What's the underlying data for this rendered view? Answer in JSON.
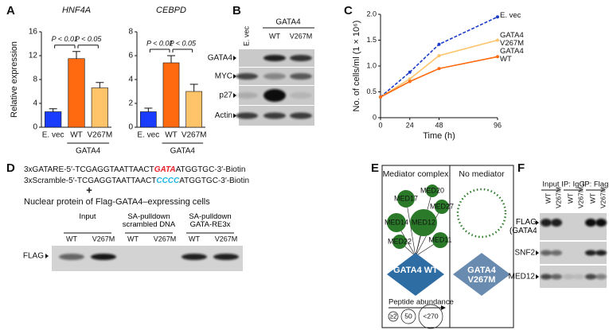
{
  "chart_data": [
    {
      "type": "bar",
      "panel": "A",
      "title": "HNF4A",
      "ylabel": "Relative expression",
      "categories": [
        "E. vec",
        "WT",
        "V267M"
      ],
      "values": [
        2.6,
        11.5,
        6.6
      ],
      "errors": [
        0.5,
        1.2,
        0.9
      ],
      "colors": [
        "#1a3cff",
        "#ff6a10",
        "#ffc46a"
      ],
      "ylim": [
        0,
        16
      ],
      "yticks": [
        0,
        4,
        8,
        12,
        16
      ],
      "group_label": "GATA4",
      "annotations": [
        "P < 0.01",
        "P < 0.05"
      ]
    },
    {
      "type": "bar",
      "title": "CEBPD",
      "categories": [
        "E. vec",
        "WT",
        "V267M"
      ],
      "values": [
        1.3,
        5.4,
        3.0
      ],
      "errors": [
        0.3,
        0.6,
        0.6
      ],
      "colors": [
        "#1a3cff",
        "#ff6a10",
        "#ffc46a"
      ],
      "ylim": [
        0,
        8
      ],
      "yticks": [
        0,
        2,
        4,
        6,
        8
      ],
      "group_label": "GATA4",
      "annotations": [
        "P < 0.01",
        "P < 0.05"
      ]
    },
    {
      "type": "line",
      "panel": "C",
      "xlabel": "Time (h)",
      "ylabel": "No. of cells/ml (1 × 10⁶)",
      "x": [
        0,
        24,
        48,
        96
      ],
      "xlim": [
        0,
        96
      ],
      "xticks": [
        0,
        24,
        48,
        96
      ],
      "ylim": [
        0,
        2
      ],
      "yticks": [
        0,
        0.5,
        {
          "value": 1,
          "label": "1.0"
        },
        1.5,
        {
          "value": 2,
          "label": "2.0"
        }
      ],
      "series": [
        {
          "name": "E. vec",
          "color": "#1a3cc8",
          "dashed": true,
          "values": [
            0.4,
            0.88,
            1.42,
            1.95
          ]
        },
        {
          "name": "GATA4 V267M",
          "color": "#ffc46a",
          "values": [
            0.4,
            0.75,
            1.2,
            1.5
          ]
        },
        {
          "name": "GATA4 WT",
          "color": "#ff6a10",
          "values": [
            0.4,
            0.7,
            0.95,
            1.18
          ]
        }
      ]
    }
  ],
  "blot_b": {
    "panel": "B",
    "header": "GATA4",
    "lanes": [
      "E. vec",
      "WT",
      "V267M"
    ],
    "rows": [
      "GATA4",
      "MYC",
      "p27",
      "Actin"
    ]
  },
  "panel_d": {
    "panel": "D",
    "sequences": [
      {
        "prefix": "3xGATARE-5′-TCGAGGTAATTAACT",
        "motif": "GATA",
        "suffix": "ATGGTGC-3′-Biotin",
        "motif_color": "#e8202a"
      },
      {
        "prefix": "3xScramble-5′-TCGAGGTAATTAACT",
        "motif": "CCCC",
        "suffix": "ATGGTGC-3′-Biotin",
        "motif_color": "#1eb4e6"
      }
    ],
    "plus": "+",
    "caption": "Nuclear protein of Flag-GATA4–expressing cells",
    "groups": [
      "Input",
      "SA-pulldown scrambled DNA",
      "SA-pulldown GATA-RE3x"
    ],
    "lanes": [
      "WT",
      "V267M",
      "WT",
      "V267M",
      "WT",
      "V267M"
    ],
    "row": "FLAG"
  },
  "panel_e": {
    "panel": "E",
    "left_title": "Mediator complex",
    "right_title": "No mediator",
    "nodes": [
      "MED17",
      "MED20",
      "MED27",
      "MED14",
      "MED12",
      "MED22",
      "MED11"
    ],
    "wt": "GATA4 WT",
    "mutant": "GATA4 V267M",
    "legend_title": "Peptide abundance",
    "legend": [
      "≥2",
      "50",
      "<270"
    ]
  },
  "panel_f": {
    "panel": "F",
    "groups": [
      "Input",
      "IP: IgG",
      "IP: Flag"
    ],
    "lanes": [
      "WT",
      "V267M",
      "WT",
      "V267M",
      "WT",
      "V267M"
    ],
    "rows": [
      "FLAG (GATA4)",
      "SNF2",
      "MED12"
    ]
  }
}
